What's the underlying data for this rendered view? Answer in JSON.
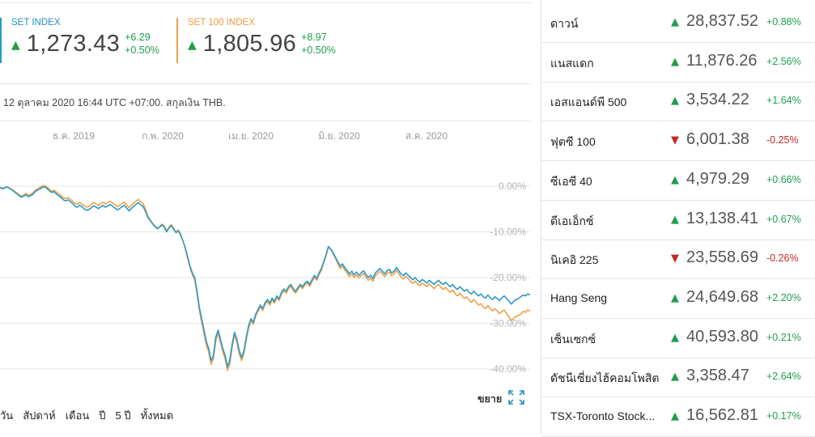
{
  "indices": [
    {
      "name": "SET INDEX",
      "value": "1,273.43",
      "change": "+6.29",
      "percent": "+0.50%"
    },
    {
      "name": "SET 100 INDEX",
      "value": "1,805.96",
      "change": "+8.97",
      "percent": "+0.50%"
    }
  ],
  "meta_text": "12 ตุลาคม 2020 16:44 UTC +07:00. สกุลเงิน THB.",
  "expand_label": "ขยาย",
  "ranges": [
    "วัน",
    "สัปดาห์",
    "เดือน",
    "ปี",
    "5 ปี",
    "ทั้งหมด"
  ],
  "markets": [
    {
      "name": "ดาวน์",
      "value": "28,837.52",
      "change": "+0.88%",
      "dir": "up"
    },
    {
      "name": "แนสแดก",
      "value": "11,876.26",
      "change": "+2.56%",
      "dir": "up"
    },
    {
      "name": "เอสแอนด์พี 500",
      "value": "3,534.22",
      "change": "+1.64%",
      "dir": "up"
    },
    {
      "name": "ฟุตซี 100",
      "value": "6,001.38",
      "change": "-0.25%",
      "dir": "down"
    },
    {
      "name": "ซีเอซี 40",
      "value": "4,979.29",
      "change": "+0.66%",
      "dir": "up"
    },
    {
      "name": "ดีเอเอ็กซ์",
      "value": "13,138.41",
      "change": "+0.67%",
      "dir": "up"
    },
    {
      "name": "นิเคอิ 225",
      "value": "23,558.69",
      "change": "-0.26%",
      "dir": "down"
    },
    {
      "name": "Hang Seng",
      "value": "24,649.68",
      "change": "+2.20%",
      "dir": "up"
    },
    {
      "name": "เซ็นเซกซ์",
      "value": "40,593.80",
      "change": "+0.21%",
      "dir": "up"
    },
    {
      "name": "ดัชนีเซี่ยงไฮ้คอมโพสิต",
      "value": "3,358.47",
      "change": "+2.64%",
      "dir": "up"
    },
    {
      "name": "TSX-Toronto Stock...",
      "value": "16,562.81",
      "change": "+0.17%",
      "dir": "up"
    }
  ],
  "colors": {
    "set": "#2a9bc4",
    "set100": "#f0a04b",
    "up": "#1e9e4c",
    "down": "#c62828"
  },
  "chart_data": {
    "type": "line",
    "x_tick_labels": [
      "ธ.ค. 2019",
      "ก.พ. 2020",
      "เม.ย. 2020",
      "มิ.ย. 2020",
      "ส.ค. 2020"
    ],
    "y_tick_labels": [
      "0.00%",
      "-10.00%",
      "-20.00%",
      "-30.00%",
      "-40.00%"
    ],
    "ylim": [
      -42,
      3
    ],
    "x": [
      "2019-10",
      "2019-11",
      "2019-12",
      "2020-01",
      "2020-02",
      "2020-03a",
      "2020-03b",
      "2020-04",
      "2020-05",
      "2020-06",
      "2020-07",
      "2020-08",
      "2020-09",
      "2020-10"
    ],
    "series": [
      {
        "name": "SET INDEX",
        "values": [
          0,
          -1.5,
          -0.8,
          -4,
          -7,
          -12,
          -38,
          -30,
          -23,
          -13,
          -20,
          -21,
          -23,
          -23.5
        ]
      },
      {
        "name": "SET 100 INDEX",
        "values": [
          0,
          -1.3,
          -0.5,
          -3.5,
          -6.5,
          -12,
          -39,
          -30,
          -23.5,
          -13,
          -21,
          -22,
          -25,
          -27.5
        ]
      }
    ],
    "dense": {
      "n": 230,
      "set": [
        -0.3,
        -0.6,
        -0.4,
        -0.2,
        -0.5,
        -0.8,
        -1.2,
        -1.6,
        -2.0,
        -2.4,
        -2.2,
        -1.9,
        -2.3,
        -2.1,
        -1.8,
        -1.2,
        -0.9,
        -0.6,
        -0.3,
        -0.2,
        -0.5,
        -1.0,
        -1.4,
        -1.2,
        -1.7,
        -2.1,
        -2.5,
        -3.0,
        -3.2,
        -3.0,
        -3.4,
        -3.8,
        -4.4,
        -4.6,
        -4.2,
        -4.5,
        -5.0,
        -5.3,
        -5.1,
        -4.7,
        -4.3,
        -4.6,
        -4.9,
        -4.5,
        -4.2,
        -4.6,
        -4.3,
        -4.0,
        -4.4,
        -4.8,
        -5.2,
        -4.9,
        -4.5,
        -4.2,
        -4.8,
        -5.4,
        -4.9,
        -4.4,
        -4.0,
        -3.6,
        -4.1,
        -4.5,
        -5.5,
        -6.8,
        -7.5,
        -8.2,
        -8.8,
        -9.3,
        -9.0,
        -8.5,
        -8.9,
        -10.0,
        -9.2,
        -8.6,
        -9.4,
        -10.2,
        -9.8,
        -10.7,
        -12.0,
        -13.5,
        -15.5,
        -17.5,
        -19.0,
        -20.0,
        -23.0,
        -26.5,
        -29.0,
        -31.5,
        -34.0,
        -35.5,
        -38.2,
        -37.0,
        -33.0,
        -31.5,
        -33.5,
        -35.5,
        -37.0,
        -39.5,
        -38.0,
        -34.5,
        -32.0,
        -33.5,
        -36.0,
        -37.5,
        -36.0,
        -33.0,
        -30.5,
        -29.0,
        -29.8,
        -28.0,
        -27.0,
        -26.0,
        -26.8,
        -25.5,
        -24.8,
        -25.6,
        -24.5,
        -25.2,
        -24.0,
        -24.6,
        -23.2,
        -22.5,
        -23.0,
        -22.0,
        -21.5,
        -22.4,
        -23.0,
        -22.2,
        -21.5,
        -22.0,
        -21.2,
        -20.8,
        -21.5,
        -20.5,
        -19.5,
        -20.2,
        -19.0,
        -18.0,
        -16.5,
        -15.0,
        -13.2,
        -13.8,
        -14.5,
        -15.5,
        -16.5,
        -17.5,
        -17.0,
        -17.8,
        -18.5,
        -19.2,
        -18.6,
        -19.4,
        -18.8,
        -19.5,
        -19.0,
        -18.5,
        -19.3,
        -20.0,
        -19.5,
        -20.2,
        -19.0,
        -18.5,
        -18.0,
        -18.6,
        -19.2,
        -18.5,
        -18.2,
        -19.0,
        -18.6,
        -17.8,
        -18.5,
        -19.2,
        -19.6,
        -19.0,
        -19.5,
        -20.0,
        -20.5,
        -20.0,
        -20.6,
        -21.0,
        -20.4,
        -20.8,
        -21.2,
        -20.6,
        -21.0,
        -21.5,
        -21.0,
        -20.6,
        -21.2,
        -21.5,
        -21.0,
        -21.6,
        -22.0,
        -21.5,
        -22.2,
        -22.6,
        -22.0,
        -22.5,
        -23.0,
        -22.6,
        -23.2,
        -23.6,
        -23.0,
        -23.5,
        -24.0,
        -23.6,
        -24.2,
        -24.5,
        -23.8,
        -24.4,
        -24.8,
        -24.2,
        -24.6,
        -25.0,
        -24.4,
        -24.0,
        -24.6,
        -25.2,
        -25.8,
        -25.2,
        -24.8,
        -24.6,
        -24.2,
        -23.8,
        -24.0,
        -23.6,
        -23.8
      ],
      "set100": [
        -0.2,
        -0.5,
        -0.3,
        -0.1,
        -0.4,
        -0.7,
        -1.0,
        -1.4,
        -1.8,
        -2.2,
        -2.0,
        -1.6,
        -2.0,
        -1.8,
        -1.5,
        -0.9,
        -0.6,
        -0.3,
        0.0,
        0.1,
        -0.2,
        -0.7,
        -1.1,
        -0.9,
        -1.3,
        -1.7,
        -2.1,
        -2.5,
        -2.7,
        -2.5,
        -2.9,
        -3.3,
        -3.8,
        -4.0,
        -3.6,
        -3.9,
        -4.3,
        -4.6,
        -4.4,
        -4.0,
        -3.6,
        -3.9,
        -4.2,
        -3.8,
        -3.5,
        -3.9,
        -3.6,
        -3.3,
        -3.7,
        -4.1,
        -4.5,
        -4.2,
        -3.8,
        -3.5,
        -4.1,
        -4.7,
        -4.2,
        -3.7,
        -3.3,
        -2.9,
        -3.4,
        -3.8,
        -5.0,
        -6.5,
        -7.3,
        -8.1,
        -8.7,
        -9.2,
        -8.9,
        -8.3,
        -8.7,
        -9.8,
        -9.0,
        -8.4,
        -9.2,
        -10.0,
        -9.6,
        -10.5,
        -12.0,
        -13.7,
        -15.8,
        -17.8,
        -19.4,
        -20.5,
        -23.6,
        -27.2,
        -29.8,
        -32.3,
        -34.8,
        -36.3,
        -39.0,
        -37.8,
        -33.8,
        -32.2,
        -34.2,
        -36.2,
        -37.8,
        -40.3,
        -38.8,
        -35.2,
        -32.6,
        -34.1,
        -36.6,
        -38.2,
        -36.6,
        -33.6,
        -31.0,
        -29.4,
        -30.2,
        -28.4,
        -27.4,
        -26.4,
        -27.2,
        -25.9,
        -25.2,
        -26.0,
        -24.9,
        -25.6,
        -24.4,
        -25.0,
        -23.6,
        -22.9,
        -23.4,
        -22.4,
        -21.9,
        -22.8,
        -23.4,
        -22.6,
        -21.9,
        -22.4,
        -21.6,
        -21.2,
        -21.9,
        -20.9,
        -19.9,
        -20.6,
        -19.4,
        -18.4,
        -16.8,
        -15.2,
        -13.3,
        -13.9,
        -14.7,
        -15.8,
        -16.9,
        -18.0,
        -17.5,
        -18.3,
        -19.0,
        -19.8,
        -19.2,
        -20.0,
        -19.4,
        -20.1,
        -19.6,
        -19.1,
        -19.9,
        -20.6,
        -20.1,
        -20.8,
        -19.6,
        -19.1,
        -18.6,
        -19.2,
        -19.8,
        -19.1,
        -18.8,
        -19.6,
        -19.2,
        -18.4,
        -19.1,
        -19.9,
        -20.3,
        -19.7,
        -20.2,
        -20.8,
        -21.3,
        -20.8,
        -21.4,
        -21.8,
        -21.2,
        -21.6,
        -22.0,
        -21.4,
        -21.9,
        -22.4,
        -21.9,
        -21.5,
        -22.2,
        -22.6,
        -22.1,
        -22.8,
        -23.2,
        -22.7,
        -23.5,
        -24.0,
        -23.4,
        -24.0,
        -24.6,
        -24.2,
        -24.9,
        -25.4,
        -24.8,
        -25.4,
        -26.0,
        -25.7,
        -26.4,
        -26.8,
        -26.1,
        -26.8,
        -27.3,
        -26.8,
        -27.3,
        -27.9,
        -27.4,
        -27.1,
        -27.9,
        -28.6,
        -29.4,
        -28.9,
        -28.5,
        -28.3,
        -28.0,
        -27.4,
        -27.6,
        -27.1,
        -27.3
      ]
    }
  }
}
